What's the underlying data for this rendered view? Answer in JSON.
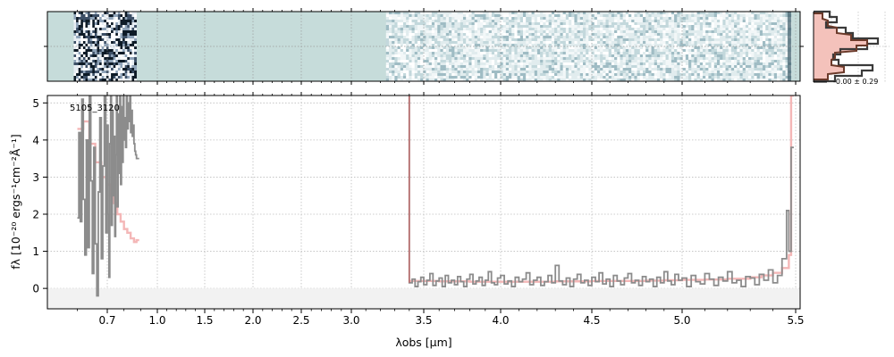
{
  "chart_data": [
    {
      "type": "line",
      "panel": "spectrum-1d",
      "title": "",
      "annotation": "5105_3120",
      "xlabel": "λobs [μm]",
      "ylabel": "fλ [10⁻²⁰ ergs⁻¹cm⁻²Å⁻¹]",
      "xlim": [
        0.5,
        5.52
      ],
      "ylim": [
        -0.55,
        5.2
      ],
      "x_scale": "reciprocal-like (compressed at long wavelength)",
      "x_ticks": [
        "0.7",
        "1.0",
        "1.5",
        "2.0",
        "2.5",
        "3.0",
        "3.5",
        "4.0",
        "4.5",
        "5.0",
        "5.5"
      ],
      "y_ticks": [
        "0",
        "1",
        "2",
        "3",
        "4",
        "5"
      ],
      "grid": true,
      "series": [
        {
          "segment": "prism-blue",
          "color": "#8c8c8c",
          "x": [
            0.6,
            0.605,
            0.61,
            0.615,
            0.62,
            0.625,
            0.63,
            0.635,
            0.64,
            0.645,
            0.65,
            0.655,
            0.66,
            0.665,
            0.67,
            0.675,
            0.68,
            0.685,
            0.69,
            0.695,
            0.7,
            0.705,
            0.71,
            0.715,
            0.72,
            0.725,
            0.73,
            0.735,
            0.74,
            0.745,
            0.75,
            0.755,
            0.76,
            0.765,
            0.77,
            0.775,
            0.78,
            0.785,
            0.79,
            0.795,
            0.8,
            0.805,
            0.81,
            0.815,
            0.82,
            0.825,
            0.83,
            0.835,
            0.84,
            0.845,
            0.85,
            0.855,
            0.86,
            0.865,
            0.87,
            0.875
          ],
          "values": [
            1.9,
            4.2,
            1.8,
            5.1,
            2.4,
            0.9,
            4.0,
            1.1,
            5.2,
            2.9,
            0.4,
            3.8,
            1.2,
            -0.2,
            2.6,
            4.6,
            0.8,
            3.3,
            5.2,
            1.5,
            4.4,
            2.0,
            0.3,
            3.9,
            5.2,
            1.7,
            4.8,
            2.5,
            4.1,
            1.4,
            3.6,
            5.2,
            2.2,
            4.7,
            3.1,
            5.2,
            2.8,
            4.9,
            3.4,
            5.2,
            4.0,
            4.6,
            3.8,
            5.2,
            4.3,
            5.0,
            4.5,
            5.2,
            4.2,
            4.8,
            4.1,
            4.4,
            3.9,
            3.7,
            3.6,
            3.5
          ]
        },
        {
          "segment": "prism-red",
          "color": "#8c8c8c",
          "x": [
            3.4,
            3.42,
            3.44,
            3.46,
            3.48,
            3.5,
            3.52,
            3.54,
            3.56,
            3.58,
            3.6,
            3.62,
            3.64,
            3.66,
            3.68,
            3.7,
            3.72,
            3.74,
            3.76,
            3.78,
            3.8,
            3.82,
            3.84,
            3.86,
            3.88,
            3.9,
            3.92,
            3.94,
            3.96,
            3.98,
            4.0,
            4.02,
            4.04,
            4.06,
            4.08,
            4.1,
            4.12,
            4.14,
            4.16,
            4.18,
            4.2,
            4.22,
            4.24,
            4.26,
            4.28,
            4.3,
            4.32,
            4.34,
            4.36,
            4.38,
            4.4,
            4.42,
            4.44,
            4.46,
            4.48,
            4.5,
            4.52,
            4.54,
            4.56,
            4.58,
            4.6,
            4.62,
            4.64,
            4.66,
            4.68,
            4.7,
            4.72,
            4.74,
            4.76,
            4.78,
            4.8,
            4.82,
            4.84,
            4.86,
            4.88,
            4.9,
            4.92,
            4.94,
            4.96,
            4.98,
            5.0,
            5.02,
            5.04,
            5.06,
            5.08,
            5.1,
            5.12,
            5.14,
            5.16,
            5.18,
            5.2,
            5.22,
            5.24,
            5.26,
            5.28,
            5.3,
            5.32,
            5.34,
            5.36,
            5.38,
            5.4,
            5.42,
            5.44,
            5.46,
            5.47,
            5.48
          ],
          "values": [
            0.15,
            0.25,
            0.05,
            0.18,
            0.3,
            0.1,
            0.22,
            0.4,
            0.08,
            0.2,
            0.28,
            0.05,
            0.35,
            0.15,
            0.22,
            0.1,
            0.32,
            0.18,
            0.05,
            0.25,
            0.38,
            0.12,
            0.2,
            0.3,
            0.08,
            0.22,
            0.45,
            0.15,
            0.1,
            0.28,
            0.35,
            0.12,
            0.2,
            0.05,
            0.3,
            0.18,
            0.25,
            0.42,
            0.1,
            0.22,
            0.3,
            0.08,
            0.18,
            0.35,
            0.15,
            0.62,
            0.2,
            0.1,
            0.28,
            0.05,
            0.25,
            0.38,
            0.15,
            0.22,
            0.08,
            0.3,
            0.18,
            0.42,
            0.12,
            0.25,
            0.05,
            0.35,
            0.2,
            0.1,
            0.28,
            0.4,
            0.15,
            0.22,
            0.08,
            0.32,
            0.18,
            0.25,
            0.05,
            0.3,
            0.15,
            0.45,
            0.2,
            0.1,
            0.38,
            0.22,
            0.28,
            0.05,
            0.35,
            0.18,
            0.12,
            0.4,
            0.25,
            0.08,
            0.3,
            0.2,
            0.45,
            0.15,
            0.22,
            0.05,
            0.32,
            0.28,
            0.1,
            0.38,
            0.22,
            0.5,
            0.15,
            0.35,
            0.8,
            2.1,
            1.0,
            3.8
          ]
        },
        {
          "segment": "model-blue",
          "color": "#f4b7b7",
          "x": [
            0.6,
            0.62,
            0.64,
            0.66,
            0.68,
            0.7,
            0.72,
            0.74,
            0.76,
            0.78,
            0.8,
            0.82,
            0.84,
            0.86,
            0.875
          ],
          "values": [
            4.3,
            4.5,
            3.9,
            3.4,
            3.0,
            2.8,
            2.5,
            2.3,
            2.0,
            1.8,
            1.6,
            1.5,
            1.35,
            1.25,
            1.3
          ]
        },
        {
          "segment": "model-red",
          "color": "#f4b7b7",
          "x": [
            3.4,
            3.5,
            3.6,
            3.7,
            3.8,
            3.9,
            4.0,
            4.1,
            4.2,
            4.3,
            4.4,
            4.5,
            4.6,
            4.7,
            4.8,
            4.9,
            5.0,
            5.1,
            5.2,
            5.3,
            5.35,
            5.4,
            5.44,
            5.47,
            5.48
          ],
          "values": [
            0.2,
            0.2,
            0.19,
            0.19,
            0.18,
            0.18,
            0.18,
            0.18,
            0.18,
            0.19,
            0.19,
            0.2,
            0.2,
            0.2,
            0.21,
            0.22,
            0.23,
            0.24,
            0.26,
            0.3,
            0.35,
            0.42,
            0.55,
            0.9,
            5.2
          ]
        }
      ]
    },
    {
      "type": "heatmap",
      "panel": "spectrum-2d",
      "xlim": [
        0.5,
        5.52
      ],
      "data_ranges": [
        [
          0.6,
          0.875
        ],
        [
          3.4,
          5.48
        ]
      ]
    },
    {
      "type": "histogram",
      "panel": "residual-histogram",
      "annotation": "-0.00 ± 0.29"
    }
  ]
}
